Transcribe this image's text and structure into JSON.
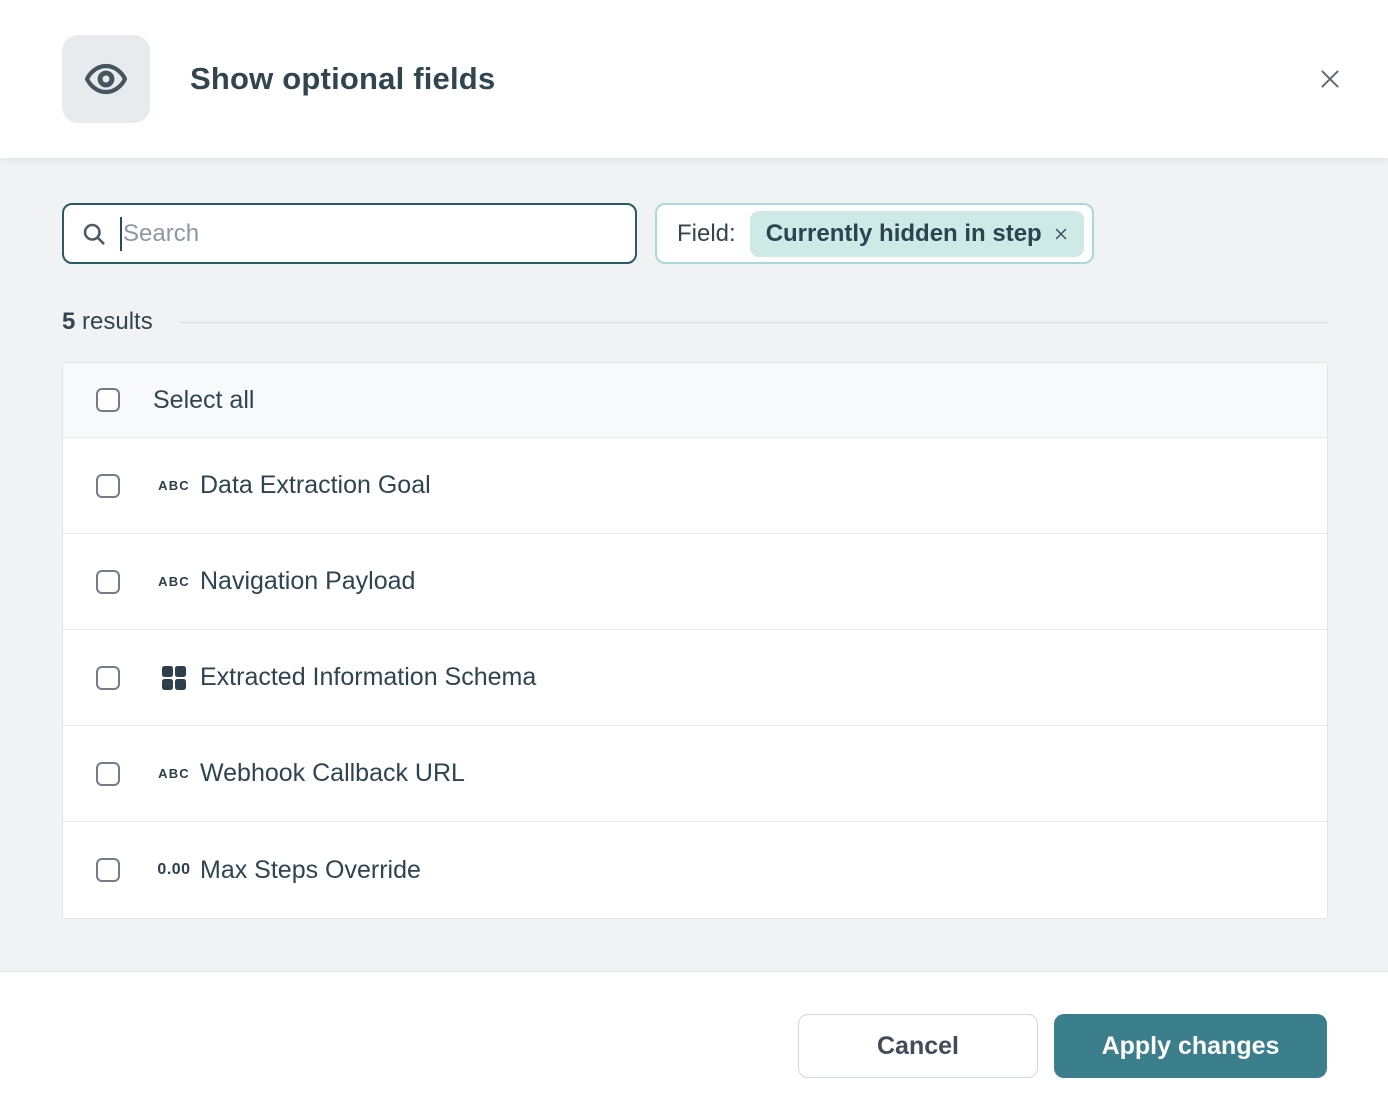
{
  "header": {
    "title": "Show optional fields"
  },
  "search": {
    "placeholder": "Search",
    "value": ""
  },
  "filter": {
    "label": "Field:",
    "chip_value": "Currently hidden in step"
  },
  "results": {
    "count": "5",
    "label": "results"
  },
  "list": {
    "select_all_label": "Select all",
    "items": [
      {
        "icon": "text-field-icon",
        "icon_text": "ABC",
        "label": "Data Extraction Goal",
        "checked": false
      },
      {
        "icon": "text-field-icon",
        "icon_text": "ABC",
        "label": "Navigation Payload",
        "checked": false
      },
      {
        "icon": "schema-grid-icon",
        "icon_text": "",
        "label": "Extracted Information Schema",
        "checked": false
      },
      {
        "icon": "text-field-icon",
        "icon_text": "ABC",
        "label": "Webhook Callback URL",
        "checked": false
      },
      {
        "icon": "number-field-icon",
        "icon_text": "0.00",
        "label": "Max Steps Override",
        "checked": false
      }
    ]
  },
  "footer": {
    "cancel_label": "Cancel",
    "apply_label": "Apply changes"
  },
  "colors": {
    "accent_teal": "#3b7e8c",
    "search_border": "#2a5a63",
    "filter_border": "#abd8d5",
    "chip_bg": "#cfe9e6",
    "body_bg": "#f0f2f4",
    "text_dark": "#33454f",
    "select_all_bg": "#f8f9fb"
  }
}
